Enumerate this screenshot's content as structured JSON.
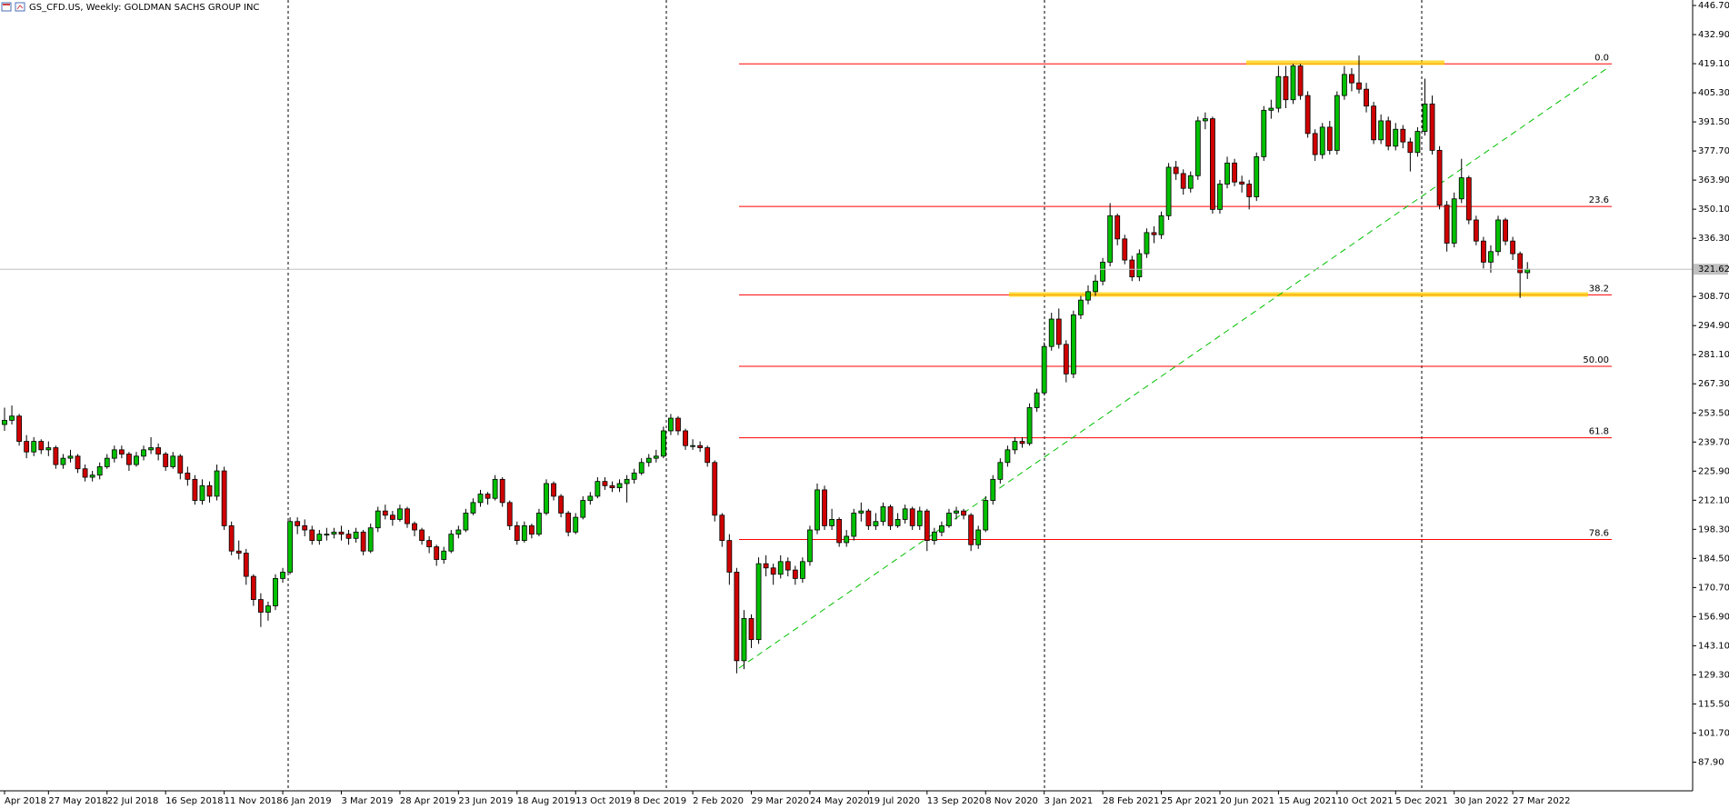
{
  "chart_data": {
    "type": "candlestick",
    "title": "GS_CFD.US, Weekly:  GOLDMAN SACHS GROUP INC",
    "up_color": "#00c000",
    "down_color": "#d00000",
    "fib_color": "#ff0000",
    "ylim": [
      74.3,
      449.3
    ],
    "yticks": [
      {
        "value": 87.9,
        "label": "87.90"
      },
      {
        "value": 101.7,
        "label": "101.70"
      },
      {
        "value": 115.5,
        "label": "115.50"
      },
      {
        "value": 129.3,
        "label": "129.30"
      },
      {
        "value": 143.1,
        "label": "143.10"
      },
      {
        "value": 156.9,
        "label": "156.90"
      },
      {
        "value": 170.7,
        "label": "170.70"
      },
      {
        "value": 184.5,
        "label": "184.50"
      },
      {
        "value": 198.3,
        "label": "198.30"
      },
      {
        "value": 212.1,
        "label": "212.10"
      },
      {
        "value": 225.9,
        "label": "225.90"
      },
      {
        "value": 239.7,
        "label": "239.70"
      },
      {
        "value": 253.5,
        "label": "253.50"
      },
      {
        "value": 267.3,
        "label": "267.30"
      },
      {
        "value": 281.1,
        "label": "281.10"
      },
      {
        "value": 294.9,
        "label": "294.90"
      },
      {
        "value": 308.7,
        "label": "308.70"
      },
      {
        "value": 336.3,
        "label": "336.30"
      },
      {
        "value": 350.1,
        "label": "350.10"
      },
      {
        "value": 363.9,
        "label": "363.90"
      },
      {
        "value": 377.7,
        "label": "377.70"
      },
      {
        "value": 391.5,
        "label": "391.50"
      },
      {
        "value": 405.3,
        "label": "405.30"
      },
      {
        "value": 419.1,
        "label": "419.10"
      },
      {
        "value": 432.9,
        "label": "432.90"
      },
      {
        "value": 446.7,
        "label": "446.70"
      }
    ],
    "xticks": [
      {
        "value": 0,
        "label": "Apr 2018"
      },
      {
        "value": 6,
        "label": "27 May 2018"
      },
      {
        "value": 14,
        "label": "22 Jul 2018"
      },
      {
        "value": 22,
        "label": "16 Sep 2018"
      },
      {
        "value": 30,
        "label": "11 Nov 2018"
      },
      {
        "value": 38,
        "label": "6 Jan 2019"
      },
      {
        "value": 46,
        "label": "3 Mar 2019"
      },
      {
        "value": 54,
        "label": "28 Apr 2019"
      },
      {
        "value": 62,
        "label": "23 Jun 2019"
      },
      {
        "value": 70,
        "label": "18 Aug 2019"
      },
      {
        "value": 78,
        "label": "13 Oct 2019"
      },
      {
        "value": 86,
        "label": "8 Dec 2019"
      },
      {
        "value": 94,
        "label": "2 Feb 2020"
      },
      {
        "value": 102,
        "label": "29 Mar 2020"
      },
      {
        "value": 110,
        "label": "24 May 2020"
      },
      {
        "value": 118,
        "label": "19 Jul 2020"
      },
      {
        "value": 126,
        "label": "13 Sep 2020"
      },
      {
        "value": 134,
        "label": "8 Nov 2020"
      },
      {
        "value": 142,
        "label": "3 Jan 2021"
      },
      {
        "value": 150,
        "label": "28 Feb 2021"
      },
      {
        "value": 158,
        "label": "25 Apr 2021"
      },
      {
        "value": 166,
        "label": "20 Jun 2021"
      },
      {
        "value": 174,
        "label": "15 Aug 2021"
      },
      {
        "value": 182,
        "label": "10 Oct 2021"
      },
      {
        "value": 190,
        "label": "5 Dec 2021"
      },
      {
        "value": 198,
        "label": "30 Jan 2022"
      },
      {
        "value": 206,
        "label": "27 Mar 2022"
      }
    ],
    "last_price": 321.62,
    "fib_levels": [
      {
        "label": "0.0",
        "price": 419.0
      },
      {
        "label": "23.6",
        "price": 351.4
      },
      {
        "label": "38.2",
        "price": 309.5
      },
      {
        "label": "50.00",
        "price": 275.6
      },
      {
        "label": "61.8",
        "price": 241.7
      },
      {
        "label": "78.6",
        "price": 193.5
      }
    ],
    "candles": [
      [
        248,
        256,
        245,
        250
      ],
      [
        250,
        257,
        248,
        252
      ],
      [
        252,
        253,
        238,
        240
      ],
      [
        240,
        243,
        232,
        235
      ],
      [
        235,
        242,
        233,
        240
      ],
      [
        240,
        241,
        234,
        236
      ],
      [
        236,
        240,
        233,
        237
      ],
      [
        237,
        238,
        227,
        229
      ],
      [
        229,
        234,
        227,
        232
      ],
      [
        232,
        236,
        230,
        233
      ],
      [
        233,
        234,
        225,
        227
      ],
      [
        227,
        229,
        221,
        223
      ],
      [
        223,
        226,
        221,
        224
      ],
      [
        224,
        230,
        222,
        228
      ],
      [
        228,
        234,
        227,
        232
      ],
      [
        232,
        238,
        230,
        236
      ],
      [
        236,
        238,
        232,
        234
      ],
      [
        234,
        235,
        226,
        229
      ],
      [
        229,
        235,
        228,
        233
      ],
      [
        233,
        238,
        231,
        236
      ],
      [
        236,
        242,
        234,
        237
      ],
      [
        237,
        239,
        231,
        234
      ],
      [
        234,
        235,
        226,
        228
      ],
      [
        228,
        235,
        227,
        233
      ],
      [
        233,
        234,
        222,
        225
      ],
      [
        225,
        228,
        219,
        222
      ],
      [
        222,
        224,
        210,
        212
      ],
      [
        212,
        222,
        210,
        219
      ],
      [
        219,
        221,
        211,
        214
      ],
      [
        214,
        229,
        212,
        226
      ],
      [
        226,
        228,
        198,
        200
      ],
      [
        200,
        202,
        186,
        188
      ],
      [
        188,
        193,
        184,
        187
      ],
      [
        187,
        189,
        172,
        176
      ],
      [
        176,
        177,
        162,
        165
      ],
      [
        165,
        168,
        152,
        159
      ],
      [
        159,
        164,
        155,
        162
      ],
      [
        162,
        177,
        160,
        175
      ],
      [
        175,
        180,
        173,
        178
      ],
      [
        178,
        204,
        177,
        202
      ],
      [
        202,
        204,
        196,
        200
      ],
      [
        200,
        203,
        195,
        198
      ],
      [
        198,
        200,
        191,
        193
      ],
      [
        193,
        198,
        191,
        196
      ],
      [
        196,
        199,
        193,
        196
      ],
      [
        196,
        199,
        194,
        197
      ],
      [
        197,
        200,
        193,
        196
      ],
      [
        196,
        198,
        191,
        194
      ],
      [
        194,
        199,
        192,
        197
      ],
      [
        197,
        198,
        186,
        188
      ],
      [
        188,
        201,
        187,
        199
      ],
      [
        199,
        209,
        197,
        207
      ],
      [
        207,
        210,
        203,
        205
      ],
      [
        205,
        207,
        200,
        203
      ],
      [
        203,
        210,
        202,
        208
      ],
      [
        208,
        209,
        199,
        201
      ],
      [
        201,
        202,
        195,
        198
      ],
      [
        198,
        199,
        191,
        193
      ],
      [
        193,
        195,
        187,
        190
      ],
      [
        190,
        191,
        181,
        184
      ],
      [
        184,
        190,
        182,
        188
      ],
      [
        188,
        198,
        187,
        196
      ],
      [
        196,
        200,
        194,
        198
      ],
      [
        198,
        208,
        197,
        206
      ],
      [
        206,
        213,
        205,
        211
      ],
      [
        211,
        217,
        209,
        215
      ],
      [
        215,
        216,
        210,
        213
      ],
      [
        213,
        224,
        212,
        222
      ],
      [
        222,
        223,
        209,
        211
      ],
      [
        211,
        212,
        198,
        200
      ],
      [
        200,
        202,
        191,
        193
      ],
      [
        193,
        202,
        192,
        200
      ],
      [
        200,
        201,
        194,
        196
      ],
      [
        196,
        208,
        195,
        206
      ],
      [
        206,
        222,
        205,
        220
      ],
      [
        220,
        221,
        212,
        214
      ],
      [
        214,
        215,
        204,
        206
      ],
      [
        206,
        207,
        195,
        197
      ],
      [
        197,
        206,
        196,
        204
      ],
      [
        204,
        214,
        203,
        212
      ],
      [
        212,
        216,
        210,
        214
      ],
      [
        214,
        223,
        213,
        221
      ],
      [
        221,
        223,
        217,
        219
      ],
      [
        219,
        221,
        216,
        218
      ],
      [
        218,
        222,
        216,
        220
      ],
      [
        220,
        224,
        211,
        222
      ],
      [
        222,
        227,
        220,
        225
      ],
      [
        225,
        232,
        224,
        230
      ],
      [
        230,
        234,
        228,
        232
      ],
      [
        232,
        236,
        230,
        233
      ],
      [
        233,
        247,
        232,
        245
      ],
      [
        245,
        253,
        243,
        251
      ],
      [
        251,
        252,
        243,
        245
      ],
      [
        245,
        246,
        236,
        238
      ],
      [
        238,
        241,
        236,
        238
      ],
      [
        238,
        240,
        235,
        237
      ],
      [
        237,
        238,
        228,
        230
      ],
      [
        230,
        231,
        202,
        205
      ],
      [
        205,
        206,
        190,
        193
      ],
      [
        193,
        196,
        172,
        178
      ],
      [
        178,
        180,
        130,
        136
      ],
      [
        136,
        160,
        132,
        156
      ],
      [
        156,
        158,
        142,
        146
      ],
      [
        146,
        185,
        144,
        182
      ],
      [
        182,
        186,
        176,
        180
      ],
      [
        180,
        182,
        172,
        177
      ],
      [
        177,
        186,
        175,
        183
      ],
      [
        183,
        185,
        176,
        179
      ],
      [
        179,
        181,
        172,
        175
      ],
      [
        175,
        185,
        173,
        183
      ],
      [
        183,
        200,
        181,
        198
      ],
      [
        198,
        220,
        196,
        217
      ],
      [
        217,
        219,
        198,
        200
      ],
      [
        200,
        208,
        198,
        203
      ],
      [
        203,
        204,
        190,
        192
      ],
      [
        192,
        198,
        190,
        195
      ],
      [
        195,
        208,
        193,
        206
      ],
      [
        206,
        211,
        202,
        207
      ],
      [
        207,
        208,
        198,
        200
      ],
      [
        200,
        206,
        198,
        202
      ],
      [
        202,
        211,
        200,
        209
      ],
      [
        209,
        210,
        198,
        200
      ],
      [
        200,
        206,
        199,
        203
      ],
      [
        203,
        210,
        201,
        208
      ],
      [
        208,
        209,
        198,
        200
      ],
      [
        200,
        209,
        198,
        207
      ],
      [
        207,
        208,
        188,
        193
      ],
      [
        193,
        199,
        191,
        197
      ],
      [
        197,
        202,
        195,
        200
      ],
      [
        200,
        208,
        199,
        206
      ],
      [
        206,
        209,
        203,
        207
      ],
      [
        207,
        208,
        203,
        205
      ],
      [
        205,
        206,
        188,
        191
      ],
      [
        191,
        200,
        189,
        198
      ],
      [
        198,
        214,
        197,
        212
      ],
      [
        212,
        224,
        210,
        222
      ],
      [
        222,
        232,
        220,
        230
      ],
      [
        230,
        238,
        228,
        236
      ],
      [
        236,
        242,
        234,
        240
      ],
      [
        240,
        242,
        237,
        239
      ],
      [
        239,
        258,
        238,
        256
      ],
      [
        256,
        265,
        254,
        263
      ],
      [
        263,
        287,
        262,
        285
      ],
      [
        285,
        301,
        283,
        298
      ],
      [
        298,
        303,
        284,
        286
      ],
      [
        286,
        288,
        268,
        272
      ],
      [
        272,
        302,
        270,
        300
      ],
      [
        300,
        309,
        298,
        307
      ],
      [
        307,
        314,
        305,
        311
      ],
      [
        311,
        319,
        309,
        316
      ],
      [
        316,
        327,
        314,
        325
      ],
      [
        325,
        353,
        323,
        347
      ],
      [
        347,
        348,
        333,
        336
      ],
      [
        336,
        338,
        324,
        326
      ],
      [
        326,
        328,
        316,
        318
      ],
      [
        318,
        331,
        316,
        329
      ],
      [
        329,
        341,
        327,
        339
      ],
      [
        339,
        342,
        334,
        338
      ],
      [
        338,
        349,
        336,
        347
      ],
      [
        347,
        372,
        345,
        370
      ],
      [
        370,
        373,
        364,
        367
      ],
      [
        367,
        369,
        357,
        360
      ],
      [
        360,
        368,
        358,
        366
      ],
      [
        366,
        394,
        364,
        392
      ],
      [
        392,
        396,
        388,
        393
      ],
      [
        393,
        394,
        348,
        350
      ],
      [
        350,
        364,
        348,
        362
      ],
      [
        362,
        375,
        360,
        372
      ],
      [
        372,
        374,
        361,
        363
      ],
      [
        363,
        366,
        358,
        362
      ],
      [
        362,
        364,
        350,
        356
      ],
      [
        356,
        377,
        354,
        375
      ],
      [
        375,
        399,
        373,
        397
      ],
      [
        397,
        402,
        393,
        398
      ],
      [
        398,
        418,
        396,
        413
      ],
      [
        413,
        418,
        398,
        402
      ],
      [
        402,
        419,
        400,
        418
      ],
      [
        418,
        419,
        402,
        404
      ],
      [
        404,
        406,
        384,
        386
      ],
      [
        386,
        388,
        373,
        376
      ],
      [
        376,
        391,
        374,
        389
      ],
      [
        389,
        392,
        376,
        378
      ],
      [
        378,
        406,
        376,
        404
      ],
      [
        404,
        418,
        402,
        414
      ],
      [
        414,
        417,
        406,
        410
      ],
      [
        410,
        423,
        405,
        407
      ],
      [
        407,
        410,
        396,
        399
      ],
      [
        399,
        401,
        381,
        383
      ],
      [
        383,
        395,
        381,
        392
      ],
      [
        392,
        394,
        378,
        380
      ],
      [
        380,
        391,
        378,
        388
      ],
      [
        388,
        390,
        379,
        382
      ],
      [
        382,
        384,
        368,
        377
      ],
      [
        377,
        389,
        375,
        387
      ],
      [
        387,
        412,
        385,
        400
      ],
      [
        400,
        404,
        376,
        378
      ],
      [
        378,
        380,
        350,
        352
      ],
      [
        352,
        354,
        330,
        334
      ],
      [
        334,
        358,
        332,
        355
      ],
      [
        355,
        374,
        353,
        365
      ],
      [
        365,
        366,
        343,
        345
      ],
      [
        345,
        347,
        333,
        335
      ],
      [
        335,
        337,
        322,
        325
      ],
      [
        325,
        333,
        320,
        330
      ],
      [
        330,
        347,
        328,
        345
      ],
      [
        345,
        346,
        333,
        335
      ],
      [
        335,
        337,
        326,
        329
      ],
      [
        329,
        330,
        308,
        320
      ],
      [
        320,
        325,
        317,
        321.62
      ]
    ]
  }
}
